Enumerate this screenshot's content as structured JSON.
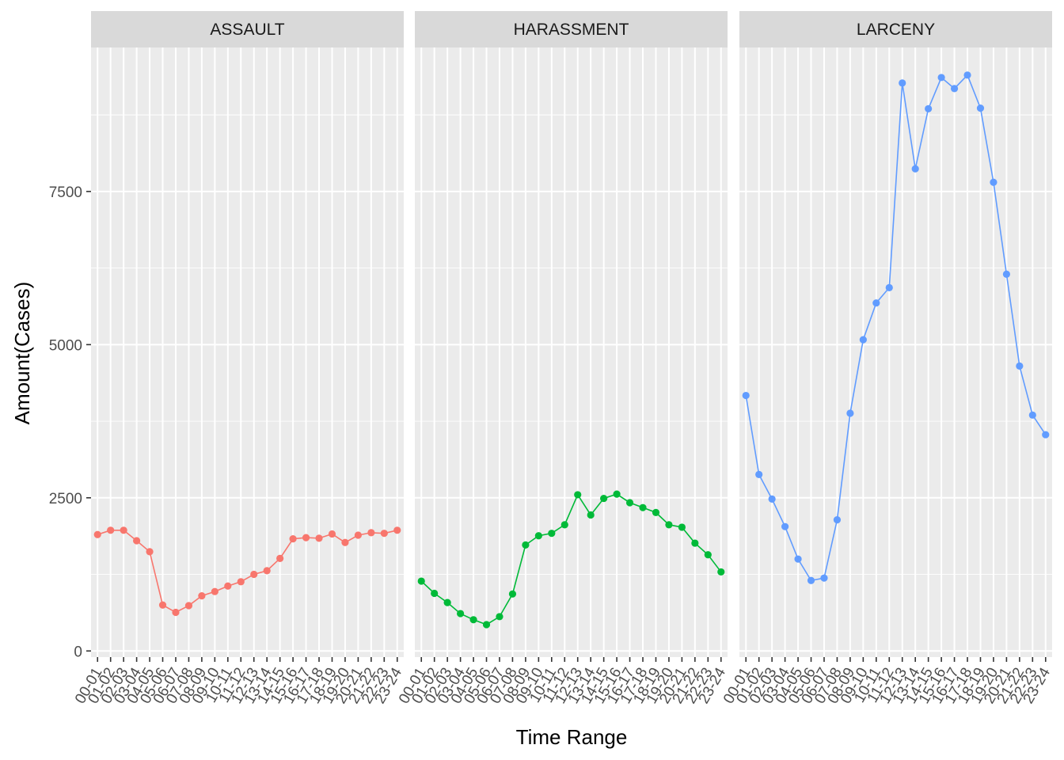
{
  "chart_data": {
    "type": "line",
    "xlabel": "Time Range",
    "ylabel": "Amount(Cases)",
    "ylim": [
      -100,
      9850
    ],
    "yticks": [
      0,
      2500,
      5000,
      7500
    ],
    "grid": true,
    "legend": "none",
    "categories": [
      "00-01",
      "01-02",
      "02-03",
      "03-04",
      "04-05",
      "05-06",
      "06-07",
      "07-08",
      "08-09",
      "09-10",
      "10-11",
      "11-12",
      "12-13",
      "13-14",
      "14-15",
      "15-16",
      "16-17",
      "17-18",
      "18-19",
      "19-20",
      "20-21",
      "21-22",
      "22-23",
      "23-24"
    ],
    "panels": [
      {
        "name": "ASSAULT",
        "color": "#F8766D",
        "values": [
          1900,
          1970,
          1970,
          1800,
          1620,
          750,
          630,
          740,
          900,
          970,
          1060,
          1130,
          1250,
          1310,
          1510,
          1830,
          1850,
          1840,
          1910,
          1770,
          1890,
          1930,
          1920,
          1970
        ]
      },
      {
        "name": "HARASSMENT",
        "color": "#00BA38",
        "values": [
          1140,
          940,
          790,
          610,
          510,
          430,
          560,
          930,
          1730,
          1880,
          1920,
          2060,
          2550,
          2220,
          2490,
          2560,
          2420,
          2340,
          2260,
          2060,
          2020,
          1760,
          1570,
          1290
        ]
      },
      {
        "name": "LARCENY",
        "color": "#619CFF",
        "values": [
          4170,
          2880,
          2480,
          2030,
          1500,
          1150,
          1190,
          2140,
          3880,
          5080,
          5680,
          5930,
          9270,
          7870,
          8850,
          9360,
          9180,
          9400,
          8860,
          7650,
          6150,
          4650,
          3850,
          3530
        ]
      }
    ]
  }
}
